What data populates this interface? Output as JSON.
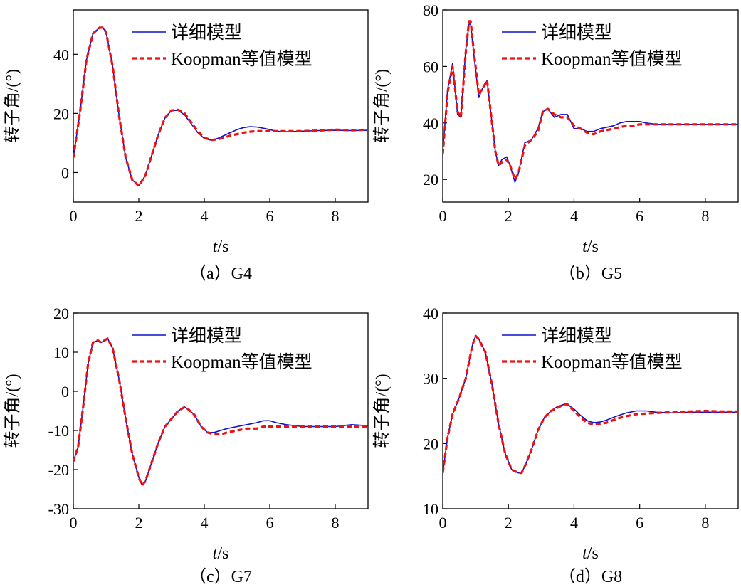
{
  "figure": {
    "colors": {
      "detailed": "#1010d0",
      "equivalent": "#ee1111",
      "axis": "#000000"
    }
  },
  "chart_data": [
    {
      "type": "line",
      "caption": "（a）G4",
      "xlabel_italic": "t",
      "xlabel_unit": "/s",
      "ylabel": "转子角/(°)",
      "xlim": [
        0,
        9
      ],
      "ylim": [
        -10,
        55
      ],
      "xticks": [
        0,
        2,
        4,
        6,
        8
      ],
      "yticks": [
        0,
        20,
        40
      ],
      "legend_position": "top-right",
      "series": [
        {
          "name": "详细模型",
          "style": "solid",
          "x": [
            0,
            0.2,
            0.4,
            0.6,
            0.8,
            0.9,
            1.0,
            1.2,
            1.4,
            1.6,
            1.8,
            2.0,
            2.2,
            2.4,
            2.6,
            2.8,
            3.0,
            3.2,
            3.4,
            3.6,
            3.8,
            4.0,
            4.2,
            4.4,
            4.6,
            4.8,
            5.0,
            5.2,
            5.4,
            5.6,
            5.8,
            6.0,
            6.2,
            6.4,
            6.6,
            6.8,
            7.0,
            7.5,
            8.0,
            8.5,
            9.0
          ],
          "y": [
            5,
            20,
            38,
            47,
            49,
            49,
            47.5,
            36,
            19,
            5,
            -2.5,
            -4.5,
            -1,
            6,
            13,
            18.5,
            21,
            21,
            19.5,
            16.5,
            13.5,
            11.5,
            11,
            11.5,
            12.5,
            13.5,
            14.5,
            15.2,
            15.5,
            15.4,
            15,
            14.5,
            14,
            13.8,
            13.8,
            13.9,
            14,
            14.2,
            14.3,
            14.2,
            14.3
          ]
        },
        {
          "name": "Koopman等值模型",
          "style": "dashed",
          "x": [
            0,
            0.2,
            0.4,
            0.6,
            0.8,
            0.9,
            1.0,
            1.2,
            1.4,
            1.6,
            1.8,
            2.0,
            2.2,
            2.4,
            2.6,
            2.8,
            3.0,
            3.2,
            3.4,
            3.6,
            3.8,
            4.0,
            4.2,
            4.4,
            4.6,
            4.8,
            5.0,
            5.2,
            5.4,
            5.6,
            5.8,
            6.0,
            6.2,
            6.4,
            6.6,
            6.8,
            7.0,
            7.5,
            8.0,
            8.5,
            9.0
          ],
          "y": [
            5,
            20,
            38,
            47,
            49,
            49,
            47.5,
            36,
            19,
            5,
            -2.5,
            -4.5,
            -1,
            6,
            13,
            18.5,
            21,
            21.2,
            20,
            17,
            14,
            11.8,
            11,
            11.2,
            11.8,
            12.5,
            13,
            13.5,
            13.8,
            14,
            14,
            14,
            14,
            14,
            14,
            14,
            14,
            14.2,
            14.5,
            14.3,
            14.5
          ]
        }
      ]
    },
    {
      "type": "line",
      "caption": "（b）G5",
      "xlabel_italic": "t",
      "xlabel_unit": "/s",
      "ylabel": "转子角/(°)",
      "xlim": [
        0,
        9
      ],
      "ylim": [
        12,
        80
      ],
      "xticks": [
        0,
        2,
        4,
        6,
        8
      ],
      "yticks": [
        20,
        40,
        60,
        80
      ],
      "legend_position": "top-right",
      "series": [
        {
          "name": "详细模型",
          "style": "solid",
          "x": [
            0,
            0.15,
            0.3,
            0.45,
            0.55,
            0.7,
            0.8,
            0.85,
            0.95,
            1.1,
            1.2,
            1.35,
            1.45,
            1.6,
            1.7,
            1.8,
            1.95,
            2.05,
            2.2,
            2.3,
            2.5,
            2.7,
            2.9,
            3.05,
            3.2,
            3.4,
            3.6,
            3.8,
            4.0,
            4.2,
            4.4,
            4.6,
            4.8,
            5.0,
            5.2,
            5.4,
            5.6,
            5.8,
            6.0,
            6.2,
            6.5,
            7.0,
            7.5,
            8.0,
            8.5,
            9.0
          ],
          "y": [
            30,
            52,
            61,
            43,
            42,
            66,
            75,
            75,
            64,
            49,
            52,
            55,
            45,
            30,
            25,
            27,
            28,
            25,
            19,
            22,
            33,
            34,
            38,
            44,
            45,
            42,
            43,
            43,
            38,
            38,
            37,
            37,
            38,
            38.5,
            39,
            40,
            40.5,
            40.5,
            40.5,
            40,
            39.5,
            39.5,
            39.5,
            39.5,
            39.5,
            39.5
          ]
        },
        {
          "name": "Koopman等值模型",
          "style": "dashed",
          "x": [
            0,
            0.15,
            0.3,
            0.45,
            0.55,
            0.7,
            0.8,
            0.85,
            0.95,
            1.1,
            1.2,
            1.35,
            1.45,
            1.6,
            1.7,
            1.8,
            1.95,
            2.05,
            2.2,
            2.3,
            2.5,
            2.7,
            2.9,
            3.05,
            3.2,
            3.4,
            3.6,
            3.8,
            4.0,
            4.2,
            4.4,
            4.6,
            4.8,
            5.0,
            5.2,
            5.4,
            5.6,
            5.8,
            6.0,
            6.2,
            6.5,
            7.0,
            7.5,
            8.0,
            8.5,
            9.0
          ],
          "y": [
            29,
            51,
            60,
            44,
            42,
            65,
            76,
            76,
            65,
            50,
            52,
            55,
            45,
            30,
            25,
            26,
            27,
            25,
            20,
            22,
            32,
            34,
            37,
            44,
            45,
            43,
            42,
            42,
            39,
            38,
            36.5,
            36,
            37,
            37.5,
            38,
            38.5,
            39,
            39,
            39.5,
            39.5,
            39.5,
            39.5,
            39.5,
            39.5,
            39.5,
            39.5
          ]
        }
      ]
    },
    {
      "type": "line",
      "caption": "（c）G7",
      "xlabel_italic": "t",
      "xlabel_unit": "/s",
      "ylabel": "转子角/(°)",
      "xlim": [
        0,
        9
      ],
      "ylim": [
        -30,
        20
      ],
      "xticks": [
        0,
        2,
        4,
        6,
        8
      ],
      "yticks": [
        -30,
        -20,
        -10,
        0,
        10,
        20
      ],
      "legend_position": "top-right",
      "series": [
        {
          "name": "详细模型",
          "style": "solid",
          "x": [
            0,
            0.15,
            0.3,
            0.45,
            0.6,
            0.75,
            0.85,
            0.95,
            1.05,
            1.2,
            1.4,
            1.6,
            1.8,
            2.0,
            2.1,
            2.2,
            2.4,
            2.6,
            2.8,
            3.0,
            3.2,
            3.4,
            3.5,
            3.7,
            3.9,
            4.1,
            4.3,
            4.5,
            4.7,
            5.0,
            5.3,
            5.6,
            5.8,
            6.0,
            6.2,
            6.5,
            7.0,
            7.5,
            8.0,
            8.5,
            9.0
          ],
          "y": [
            -18,
            -14,
            -4,
            7,
            12.5,
            13,
            12.5,
            13,
            13.5,
            11,
            3,
            -7,
            -16,
            -22,
            -24,
            -23,
            -18,
            -13,
            -9,
            -7,
            -5,
            -4,
            -4.5,
            -6,
            -9,
            -10.5,
            -10.5,
            -10,
            -9.5,
            -9,
            -8.5,
            -8,
            -7.5,
            -7.5,
            -8,
            -8.5,
            -9,
            -9,
            -9,
            -8.5,
            -8.8
          ]
        },
        {
          "name": "Koopman等值模型",
          "style": "dashed",
          "x": [
            0,
            0.15,
            0.3,
            0.45,
            0.6,
            0.75,
            0.85,
            0.95,
            1.05,
            1.2,
            1.4,
            1.6,
            1.8,
            2.0,
            2.1,
            2.2,
            2.4,
            2.6,
            2.8,
            3.0,
            3.2,
            3.4,
            3.5,
            3.7,
            3.9,
            4.1,
            4.3,
            4.5,
            4.7,
            5.0,
            5.3,
            5.6,
            5.8,
            6.0,
            6.2,
            6.5,
            7.0,
            7.5,
            8.0,
            8.5,
            9.0
          ],
          "y": [
            -18,
            -14,
            -4,
            7,
            12.5,
            13,
            12.5,
            13,
            13.5,
            11,
            3,
            -7,
            -16,
            -22,
            -24,
            -23,
            -18,
            -13,
            -9,
            -7,
            -5,
            -4,
            -4.5,
            -6,
            -9,
            -10.5,
            -11,
            -11,
            -10.5,
            -10,
            -9.5,
            -9.5,
            -9,
            -9,
            -9,
            -9,
            -9,
            -9,
            -9,
            -9,
            -9
          ]
        }
      ]
    },
    {
      "type": "line",
      "caption": "（d）G8",
      "xlabel_italic": "t",
      "xlabel_unit": "/s",
      "ylabel": "转子角/(°)",
      "xlim": [
        0,
        9
      ],
      "ylim": [
        10,
        40
      ],
      "xticks": [
        0,
        2,
        4,
        6,
        8
      ],
      "yticks": [
        10,
        20,
        30,
        40
      ],
      "legend_position": "top-right",
      "series": [
        {
          "name": "详细模型",
          "style": "solid",
          "x": [
            0,
            0.15,
            0.3,
            0.5,
            0.7,
            0.9,
            1.0,
            1.1,
            1.3,
            1.5,
            1.7,
            1.9,
            2.1,
            2.3,
            2.4,
            2.5,
            2.7,
            2.9,
            3.1,
            3.3,
            3.5,
            3.7,
            3.8,
            4.0,
            4.2,
            4.4,
            4.6,
            4.8,
            5.0,
            5.3,
            5.6,
            5.9,
            6.2,
            6.5,
            7.0,
            7.5,
            8.0,
            8.5,
            9.0
          ],
          "y": [
            15.5,
            21,
            24.5,
            27,
            30,
            35,
            36.5,
            36,
            34,
            29,
            23,
            18.5,
            16,
            15.5,
            15.5,
            16.5,
            19,
            22,
            24,
            25,
            25.7,
            26,
            26,
            25.3,
            24.3,
            23.5,
            23.2,
            23.3,
            23.6,
            24.2,
            24.7,
            25,
            25,
            24.8,
            24.7,
            24.8,
            24.8,
            24.8,
            24.8
          ]
        },
        {
          "name": "Koopman等值模型",
          "style": "dashed",
          "x": [
            0,
            0.15,
            0.3,
            0.5,
            0.7,
            0.9,
            1.0,
            1.1,
            1.3,
            1.5,
            1.7,
            1.9,
            2.1,
            2.3,
            2.4,
            2.5,
            2.7,
            2.9,
            3.1,
            3.3,
            3.5,
            3.7,
            3.8,
            4.0,
            4.2,
            4.4,
            4.6,
            4.8,
            5.0,
            5.3,
            5.6,
            5.9,
            6.2,
            6.5,
            7.0,
            7.5,
            8.0,
            8.5,
            9.0
          ],
          "y": [
            15.5,
            21,
            24.5,
            27,
            30,
            35,
            36.5,
            36,
            34,
            29,
            23,
            18.5,
            16,
            15.5,
            15.5,
            16.5,
            19,
            22,
            24,
            25,
            25.5,
            26,
            26,
            25,
            24,
            23.2,
            22.9,
            23,
            23.2,
            23.8,
            24.2,
            24.5,
            24.6,
            24.7,
            24.8,
            24.9,
            25,
            24.9,
            24.9
          ]
        }
      ]
    }
  ]
}
